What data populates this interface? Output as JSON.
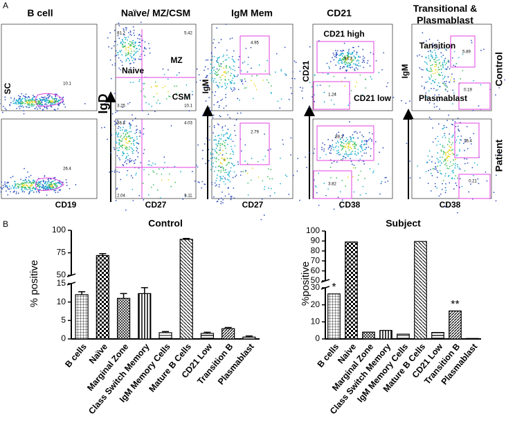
{
  "panel_a": {
    "label": "A",
    "columns": [
      {
        "title": "B cell",
        "x_label": "CD19",
        "y_label": "SC"
      },
      {
        "title": "Naïve/ MZ/CSM",
        "x_label": "CD27",
        "y_label": "IgD"
      },
      {
        "title": "IgM Mem",
        "x_label": "CD27",
        "y_label": "IgM"
      },
      {
        "title": "CD21",
        "x_label": "CD38",
        "y_label": "CD21"
      },
      {
        "title": "Transitional & Plasmablast",
        "x_label": "CD38",
        "y_label": "IgM"
      }
    ],
    "rows": [
      "Control",
      "Patient"
    ],
    "gate_labels": [
      "Naive",
      "MZ",
      "CSM",
      "CD21 high",
      "CD21 low",
      "Tansition",
      "Plasmablast"
    ],
    "gate_values": [
      [
        "10.1",
        "81.2",
        "5.42",
        "3.25",
        "10.1",
        "4.95",
        "93.3",
        "1.24",
        "5.89",
        "0.19"
      ],
      [
        "26.4",
        "88.8",
        "4.03",
        "2.04",
        "5.11",
        "2.79",
        "89.1",
        "3.82",
        "16.4",
        "0.21"
      ]
    ]
  },
  "panel_b": {
    "label": "B"
  },
  "chart_data": [
    {
      "type": "bar",
      "title": "Control",
      "ylabel": "% positive",
      "categories": [
        "B cells",
        "Naïve",
        "Marginal Zone",
        "Class Switch Memory",
        "IgM Memory Cells",
        "Mature B Cells",
        "CD21 Low",
        "Transition B",
        "Plasmablast"
      ],
      "values": [
        12,
        72,
        11,
        12.3,
        1.7,
        90,
        1.5,
        2.8,
        0.5
      ],
      "errors": [
        0.8,
        2,
        1.3,
        1.6,
        0.3,
        1,
        0.3,
        0.3,
        0.3
      ],
      "color": "#000000",
      "ylim": [
        0,
        100
      ],
      "yticks": [
        0,
        5,
        10,
        15,
        50,
        75,
        100
      ],
      "axis_break": [
        15,
        50
      ]
    },
    {
      "type": "bar",
      "title": "Subject",
      "ylabel": "%positive",
      "categories": [
        "B cells",
        "Naive",
        "Marginal Zone",
        "Class Switch Memory",
        "IgM Memory Cells",
        "Mature B Cells",
        "CD21 Low",
        "Transition B",
        "Plasmablast"
      ],
      "values": [
        26.4,
        89,
        4,
        5,
        2.8,
        89.5,
        3.8,
        16.4,
        0.3
      ],
      "annotations": [
        "*",
        null,
        null,
        null,
        null,
        null,
        null,
        "**",
        null
      ],
      "color": "#000000",
      "ylim": [
        0,
        100
      ],
      "yticks": [
        0,
        10,
        20,
        30,
        50,
        60,
        70,
        80,
        90,
        100
      ],
      "axis_break": [
        30,
        50
      ]
    }
  ]
}
